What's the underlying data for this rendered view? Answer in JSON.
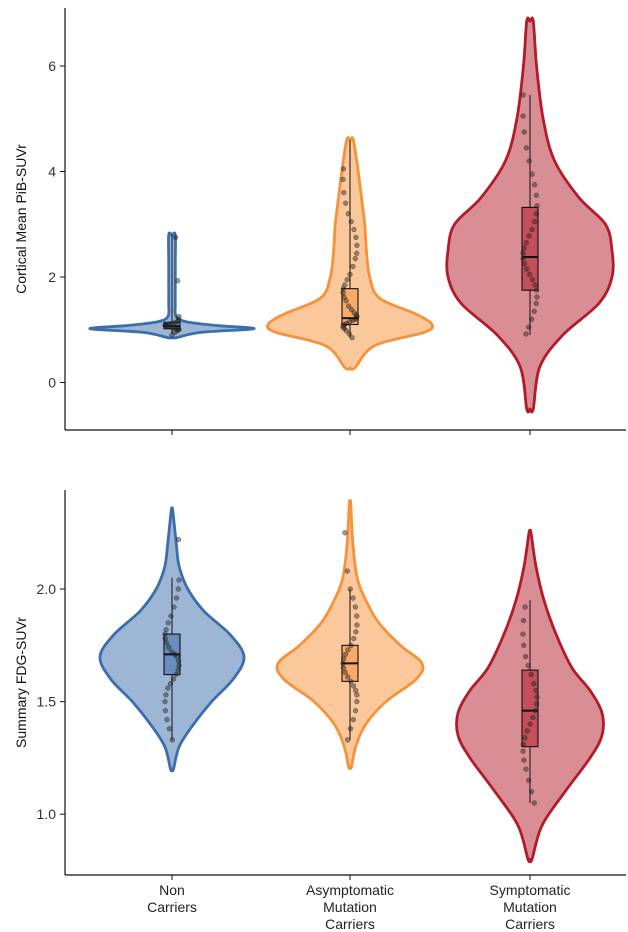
{
  "colors": {
    "non_carriers": "#3b6eab",
    "asymptomatic": "#f7923a",
    "symptomatic": "#b31b29",
    "points": "#222222",
    "axis": "#111111"
  },
  "chart_data": [
    {
      "type": "violin",
      "ylabel": "Cortical Mean PiB-SUVr",
      "ylim": [
        -0.9,
        7.1
      ],
      "yticks": [
        0,
        2,
        4,
        6
      ],
      "categories": [
        "Non Carriers",
        "Asymptomatic Mutation Carriers",
        "Symptomatic Mutation Carriers"
      ],
      "series": [
        {
          "color_key": "non_carriers",
          "range": [
            0.85,
            2.8
          ],
          "box": {
            "q1": 1.02,
            "median": 1.07,
            "q3": 1.14,
            "whisker_low": 0.92,
            "whisker_high": 2.8
          },
          "density": [
            [
              0.85,
              0.05
            ],
            [
              0.95,
              0.35
            ],
            [
              1.02,
              1.0
            ],
            [
              1.08,
              0.55
            ],
            [
              1.15,
              0.18
            ],
            [
              1.25,
              0.05
            ],
            [
              1.5,
              0.04
            ],
            [
              1.9,
              0.04
            ],
            [
              2.3,
              0.04
            ],
            [
              2.8,
              0.04
            ]
          ],
          "points": [
            0.9,
            0.95,
            0.98,
            1.0,
            1.01,
            1.02,
            1.03,
            1.04,
            1.05,
            1.06,
            1.07,
            1.08,
            1.09,
            1.1,
            1.11,
            1.12,
            1.14,
            1.16,
            1.2,
            1.25,
            1.93,
            2.75
          ]
        },
        {
          "color_key": "asymptomatic",
          "range": [
            0.28,
            4.6
          ],
          "box": {
            "q1": 1.1,
            "median": 1.22,
            "q3": 1.78,
            "whisker_low": 0.85,
            "whisker_high": 4.6
          },
          "density": [
            [
              0.28,
              0.03
            ],
            [
              0.7,
              0.15
            ],
            [
              0.95,
              0.45
            ],
            [
              1.1,
              0.5
            ],
            [
              1.3,
              0.4
            ],
            [
              1.6,
              0.18
            ],
            [
              2.0,
              0.12
            ],
            [
              2.5,
              0.1
            ],
            [
              3.0,
              0.09
            ],
            [
              3.5,
              0.07
            ],
            [
              4.0,
              0.05
            ],
            [
              4.6,
              0.02
            ]
          ],
          "points": [
            0.85,
            0.92,
            0.98,
            1.02,
            1.05,
            1.08,
            1.1,
            1.12,
            1.15,
            1.18,
            1.2,
            1.22,
            1.25,
            1.28,
            1.32,
            1.38,
            1.45,
            1.55,
            1.62,
            1.7,
            1.78,
            1.85,
            1.95,
            2.05,
            2.2,
            2.35,
            2.45,
            2.6,
            2.75,
            2.9,
            3.05,
            3.2,
            3.4,
            3.6,
            3.85,
            4.05
          ]
        },
        {
          "color_key": "symptomatic",
          "range": [
            -0.5,
            6.85
          ],
          "box": {
            "q1": 1.75,
            "median": 2.38,
            "q3": 3.32,
            "whisker_low": 0.9,
            "whisker_high": 5.45
          },
          "density": [
            [
              -0.5,
              0.02
            ],
            [
              0.3,
              0.06
            ],
            [
              0.9,
              0.2
            ],
            [
              1.5,
              0.42
            ],
            [
              2.0,
              0.5
            ],
            [
              2.5,
              0.5
            ],
            [
              3.0,
              0.46
            ],
            [
              3.5,
              0.3
            ],
            [
              4.2,
              0.15
            ],
            [
              5.0,
              0.08
            ],
            [
              6.0,
              0.04
            ],
            [
              6.85,
              0.02
            ]
          ],
          "points": [
            0.92,
            1.05,
            1.2,
            1.35,
            1.5,
            1.62,
            1.75,
            1.85,
            1.95,
            2.05,
            2.15,
            2.25,
            2.35,
            2.45,
            2.55,
            2.65,
            2.78,
            2.9,
            3.05,
            3.2,
            3.35,
            3.55,
            3.75,
            3.95,
            4.2,
            4.45,
            4.75,
            5.05,
            5.45
          ]
        }
      ]
    },
    {
      "type": "violin",
      "ylabel": "Summary FDG-SUVr",
      "ylim": [
        0.73,
        2.44
      ],
      "yticks": [
        1.0,
        1.5,
        2.0
      ],
      "ytick_labels": [
        "1.0",
        "1.5",
        "2.0"
      ],
      "categories": [
        "Non Carriers",
        "Asymptomatic Mutation Carriers",
        "Symptomatic Mutation Carriers"
      ],
      "category_lines": [
        [
          "Non",
          "Carriers"
        ],
        [
          "Asymptomatic",
          "Mutation",
          "Carriers"
        ],
        [
          "Symptomatic",
          "Mutation",
          "Carriers"
        ]
      ],
      "series": [
        {
          "color_key": "non_carriers",
          "range": [
            1.2,
            2.35
          ],
          "box": {
            "q1": 1.62,
            "median": 1.71,
            "q3": 1.8,
            "whisker_low": 1.33,
            "whisker_high": 2.05
          },
          "density": [
            [
              1.2,
              0.02
            ],
            [
              1.3,
              0.1
            ],
            [
              1.4,
              0.3
            ],
            [
              1.5,
              0.55
            ],
            [
              1.6,
              0.85
            ],
            [
              1.7,
              1.0
            ],
            [
              1.8,
              0.8
            ],
            [
              1.9,
              0.45
            ],
            [
              2.0,
              0.22
            ],
            [
              2.1,
              0.1
            ],
            [
              2.2,
              0.06
            ],
            [
              2.35,
              0.01
            ]
          ],
          "points": [
            1.33,
            1.38,
            1.42,
            1.46,
            1.5,
            1.53,
            1.56,
            1.58,
            1.6,
            1.62,
            1.64,
            1.66,
            1.68,
            1.7,
            1.71,
            1.72,
            1.74,
            1.76,
            1.78,
            1.8,
            1.82,
            1.85,
            1.88,
            1.92,
            1.96,
            2.0,
            2.04,
            2.22
          ]
        },
        {
          "color_key": "asymptomatic",
          "range": [
            1.21,
            2.38
          ],
          "box": {
            "q1": 1.59,
            "median": 1.67,
            "q3": 1.75,
            "whisker_low": 1.33,
            "whisker_high": 2.0
          },
          "density": [
            [
              1.21,
              0.02
            ],
            [
              1.3,
              0.08
            ],
            [
              1.4,
              0.22
            ],
            [
              1.5,
              0.5
            ],
            [
              1.6,
              0.92
            ],
            [
              1.67,
              1.0
            ],
            [
              1.75,
              0.7
            ],
            [
              1.85,
              0.4
            ],
            [
              1.95,
              0.22
            ],
            [
              2.05,
              0.1
            ],
            [
              2.2,
              0.04
            ],
            [
              2.38,
              0.01
            ]
          ],
          "points": [
            1.33,
            1.38,
            1.42,
            1.46,
            1.5,
            1.53,
            1.55,
            1.57,
            1.59,
            1.61,
            1.63,
            1.65,
            1.67,
            1.69,
            1.71,
            1.73,
            1.75,
            1.78,
            1.81,
            1.84,
            1.88,
            1.92,
            1.96,
            2.0,
            2.08,
            2.25
          ]
        },
        {
          "color_key": "symptomatic",
          "range": [
            0.8,
            2.25
          ],
          "box": {
            "q1": 1.3,
            "median": 1.46,
            "q3": 1.64,
            "whisker_low": 1.05,
            "whisker_high": 1.95
          },
          "density": [
            [
              0.8,
              0.02
            ],
            [
              0.95,
              0.12
            ],
            [
              1.1,
              0.35
            ],
            [
              1.25,
              0.6
            ],
            [
              1.35,
              0.72
            ],
            [
              1.45,
              0.72
            ],
            [
              1.55,
              0.6
            ],
            [
              1.65,
              0.42
            ],
            [
              1.8,
              0.26
            ],
            [
              1.95,
              0.14
            ],
            [
              2.1,
              0.06
            ],
            [
              2.25,
              0.01
            ]
          ],
          "points": [
            1.05,
            1.1,
            1.15,
            1.2,
            1.24,
            1.28,
            1.31,
            1.34,
            1.37,
            1.4,
            1.43,
            1.46,
            1.49,
            1.52,
            1.55,
            1.58,
            1.62,
            1.66,
            1.7,
            1.75,
            1.8,
            1.86,
            1.92
          ]
        }
      ]
    }
  ]
}
